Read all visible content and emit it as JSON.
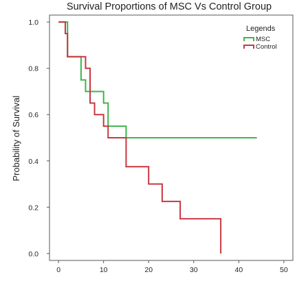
{
  "chart_data": {
    "type": "line",
    "step": true,
    "title": "Survival Proportions of MSC Vs Control Group",
    "xlabel": "",
    "ylabel": "Probability of Survival",
    "xlim": [
      -2,
      52
    ],
    "ylim": [
      -0.03,
      1.03
    ],
    "x_ticks": [
      0,
      10,
      20,
      30,
      40,
      50
    ],
    "y_ticks": [
      0.0,
      0.2,
      0.4,
      0.6,
      0.8,
      1.0
    ],
    "x_tick_labels": [
      "0",
      "10",
      "20",
      "30",
      "40",
      "50"
    ],
    "y_tick_labels": [
      "0.0",
      "0.2",
      "0.4",
      "0.6",
      "0.8",
      "1.0"
    ],
    "grid": false,
    "legend": {
      "title": "Legends",
      "placement": "top-right"
    },
    "series": [
      {
        "name": "MSC",
        "color": "#3cb54a",
        "points": [
          [
            0,
            1.0
          ],
          [
            2,
            1.0
          ],
          [
            2,
            0.85
          ],
          [
            5,
            0.85
          ],
          [
            5,
            0.75
          ],
          [
            6,
            0.75
          ],
          [
            6,
            0.7
          ],
          [
            10,
            0.7
          ],
          [
            10,
            0.65
          ],
          [
            11,
            0.65
          ],
          [
            11,
            0.55
          ],
          [
            15,
            0.55
          ],
          [
            15,
            0.5
          ],
          [
            44,
            0.5
          ]
        ]
      },
      {
        "name": "Control",
        "color": "#c8373f",
        "points": [
          [
            0,
            1.0
          ],
          [
            1.5,
            1.0
          ],
          [
            1.5,
            0.95
          ],
          [
            2,
            0.95
          ],
          [
            2,
            0.85
          ],
          [
            6,
            0.85
          ],
          [
            6,
            0.8
          ],
          [
            7,
            0.8
          ],
          [
            7,
            0.65
          ],
          [
            8,
            0.65
          ],
          [
            8,
            0.6
          ],
          [
            10,
            0.6
          ],
          [
            10,
            0.55
          ],
          [
            11,
            0.55
          ],
          [
            11,
            0.5
          ],
          [
            15,
            0.5
          ],
          [
            15,
            0.375
          ],
          [
            20,
            0.375
          ],
          [
            20,
            0.3
          ],
          [
            23,
            0.3
          ],
          [
            23,
            0.225
          ],
          [
            27,
            0.225
          ],
          [
            27,
            0.15
          ],
          [
            36,
            0.15
          ],
          [
            36,
            0.0
          ]
        ]
      }
    ]
  }
}
